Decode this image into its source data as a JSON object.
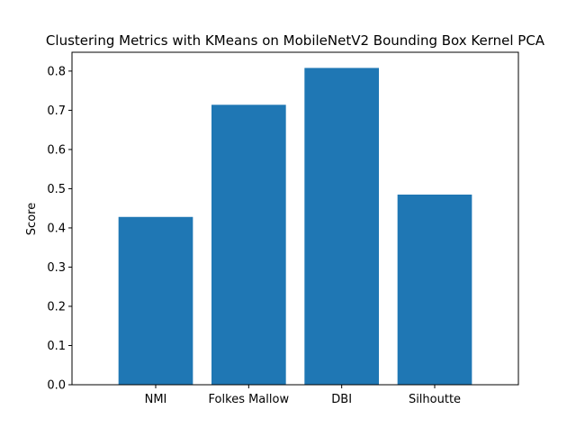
{
  "chart_data": {
    "type": "bar",
    "title": "Clustering Metrics with KMeans on MobileNetV2 Bounding Box Kernel PCA",
    "xlabel": "",
    "ylabel": "Score",
    "categories": [
      "NMI",
      "Folkes Mallow",
      "DBI",
      "Silhoutte"
    ],
    "values": [
      0.428,
      0.714,
      0.808,
      0.485
    ],
    "ylim": [
      0,
      0.848
    ],
    "yticks": [
      0.0,
      0.1,
      0.2,
      0.3,
      0.4,
      0.5,
      0.6,
      0.7,
      0.8
    ],
    "ytick_labels": [
      "0.0",
      "0.1",
      "0.2",
      "0.3",
      "0.4",
      "0.5",
      "0.6",
      "0.7",
      "0.8"
    ],
    "bar_color": "#1f77b4",
    "grid": false,
    "legend": "none"
  }
}
